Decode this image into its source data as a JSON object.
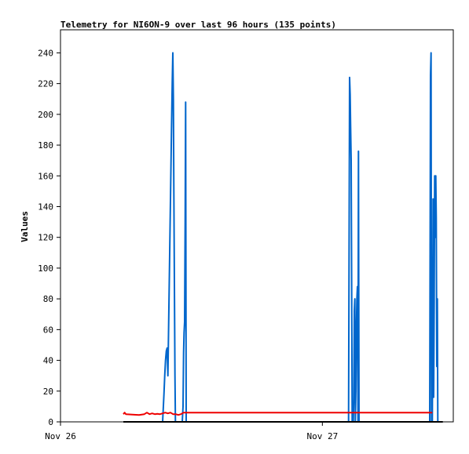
{
  "chart_data": {
    "type": "line",
    "title": "Telemetry for NI6ON-9 over last 96 hours (135 points)",
    "ylabel": "Values",
    "xlabel": "",
    "ylim": [
      0,
      255
    ],
    "xlim": [
      0,
      1.5
    ],
    "yticks": [
      0,
      20,
      40,
      60,
      80,
      100,
      120,
      140,
      160,
      180,
      200,
      220,
      240
    ],
    "xticks": [
      {
        "value": 0,
        "label": "Nov 26"
      },
      {
        "value": 1,
        "label": "Nov 27"
      }
    ],
    "grid": false,
    "legend": "none",
    "series": [
      {
        "color": "#0066cc",
        "points": [
          [
            0.38,
            0
          ],
          [
            0.39,
            0
          ],
          [
            0.395,
            18
          ],
          [
            0.398,
            30
          ],
          [
            0.401,
            40
          ],
          [
            0.404,
            46
          ],
          [
            0.407,
            48
          ],
          [
            0.41,
            30
          ],
          [
            0.412,
            50
          ],
          [
            0.415,
            85
          ],
          [
            0.418,
            120
          ],
          [
            0.421,
            155
          ],
          [
            0.424,
            190
          ],
          [
            0.427,
            222
          ],
          [
            0.429,
            240
          ],
          [
            0.431,
            210
          ],
          [
            0.433,
            150
          ],
          [
            0.435,
            90
          ],
          [
            0.437,
            30
          ],
          [
            0.439,
            0
          ],
          [
            0.465,
            0
          ],
          [
            0.468,
            10
          ],
          [
            0.47,
            45
          ],
          [
            0.472,
            58
          ],
          [
            0.474,
            65
          ],
          [
            0.476,
            130
          ],
          [
            0.478,
            208
          ],
          [
            0.48,
            0
          ],
          [
            1.1,
            0
          ],
          [
            1.104,
            224
          ],
          [
            1.106,
            213
          ],
          [
            1.108,
            192
          ],
          [
            1.11,
            170
          ],
          [
            1.112,
            80
          ],
          [
            1.114,
            0
          ],
          [
            1.118,
            0
          ],
          [
            1.12,
            15
          ],
          [
            1.122,
            72
          ],
          [
            1.124,
            80
          ],
          [
            1.126,
            0
          ],
          [
            1.128,
            20
          ],
          [
            1.13,
            62
          ],
          [
            1.132,
            80
          ],
          [
            1.134,
            88
          ],
          [
            1.136,
            0
          ],
          [
            1.138,
            176
          ],
          [
            1.14,
            0
          ],
          [
            1.41,
            0
          ],
          [
            1.413,
            225
          ],
          [
            1.415,
            240
          ],
          [
            1.417,
            0
          ],
          [
            1.42,
            0
          ],
          [
            1.423,
            145
          ],
          [
            1.425,
            16
          ],
          [
            1.427,
            80
          ],
          [
            1.429,
            160
          ],
          [
            1.431,
            120
          ],
          [
            1.433,
            160
          ],
          [
            1.435,
            133
          ],
          [
            1.437,
            36
          ],
          [
            1.439,
            80
          ],
          [
            1.441,
            0
          ]
        ]
      },
      {
        "color": "#ee0000",
        "points": [
          [
            0.24,
            5
          ],
          [
            0.245,
            6
          ],
          [
            0.25,
            5
          ],
          [
            0.3,
            4.5
          ],
          [
            0.32,
            5
          ],
          [
            0.33,
            6
          ],
          [
            0.34,
            5
          ],
          [
            0.35,
            5.5
          ],
          [
            0.36,
            5
          ],
          [
            0.37,
            5.2
          ],
          [
            0.38,
            5
          ],
          [
            0.39,
            5.5
          ],
          [
            0.4,
            6
          ],
          [
            0.41,
            5.5
          ],
          [
            0.42,
            6
          ],
          [
            0.43,
            5
          ],
          [
            0.44,
            5
          ],
          [
            0.45,
            4.5
          ],
          [
            0.46,
            5
          ],
          [
            0.47,
            6
          ],
          [
            1.42,
            6
          ]
        ]
      },
      {
        "color": "#000000",
        "points": [
          [
            0.24,
            0
          ],
          [
            1.46,
            0
          ]
        ]
      }
    ]
  }
}
